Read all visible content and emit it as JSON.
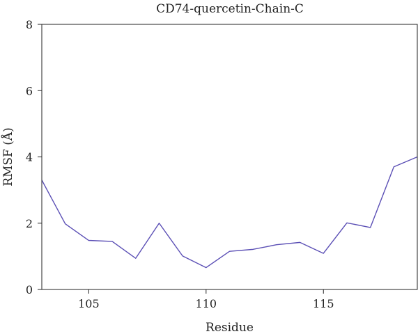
{
  "chart_data": {
    "type": "line",
    "title": "CD74-quercetin-Chain-C",
    "xlabel": "Residue",
    "ylabel": "RMSF (Å)",
    "xlim": [
      103,
      119
    ],
    "ylim": [
      0,
      8
    ],
    "xticks": [
      105,
      110,
      115
    ],
    "yticks": [
      0,
      2,
      4,
      6,
      8
    ],
    "grid": false,
    "legend": "none",
    "series": [
      {
        "color": "#5b4fb5",
        "x": [
          103,
          104,
          105,
          106,
          107,
          108,
          109,
          110,
          111,
          112,
          113,
          114,
          115,
          116,
          117,
          118,
          119
        ],
        "y": [
          3.3,
          1.98,
          1.48,
          1.45,
          0.94,
          2.0,
          1.01,
          0.66,
          1.15,
          1.21,
          1.35,
          1.42,
          1.09,
          2.01,
          1.87,
          3.7,
          4.0
        ]
      }
    ]
  }
}
